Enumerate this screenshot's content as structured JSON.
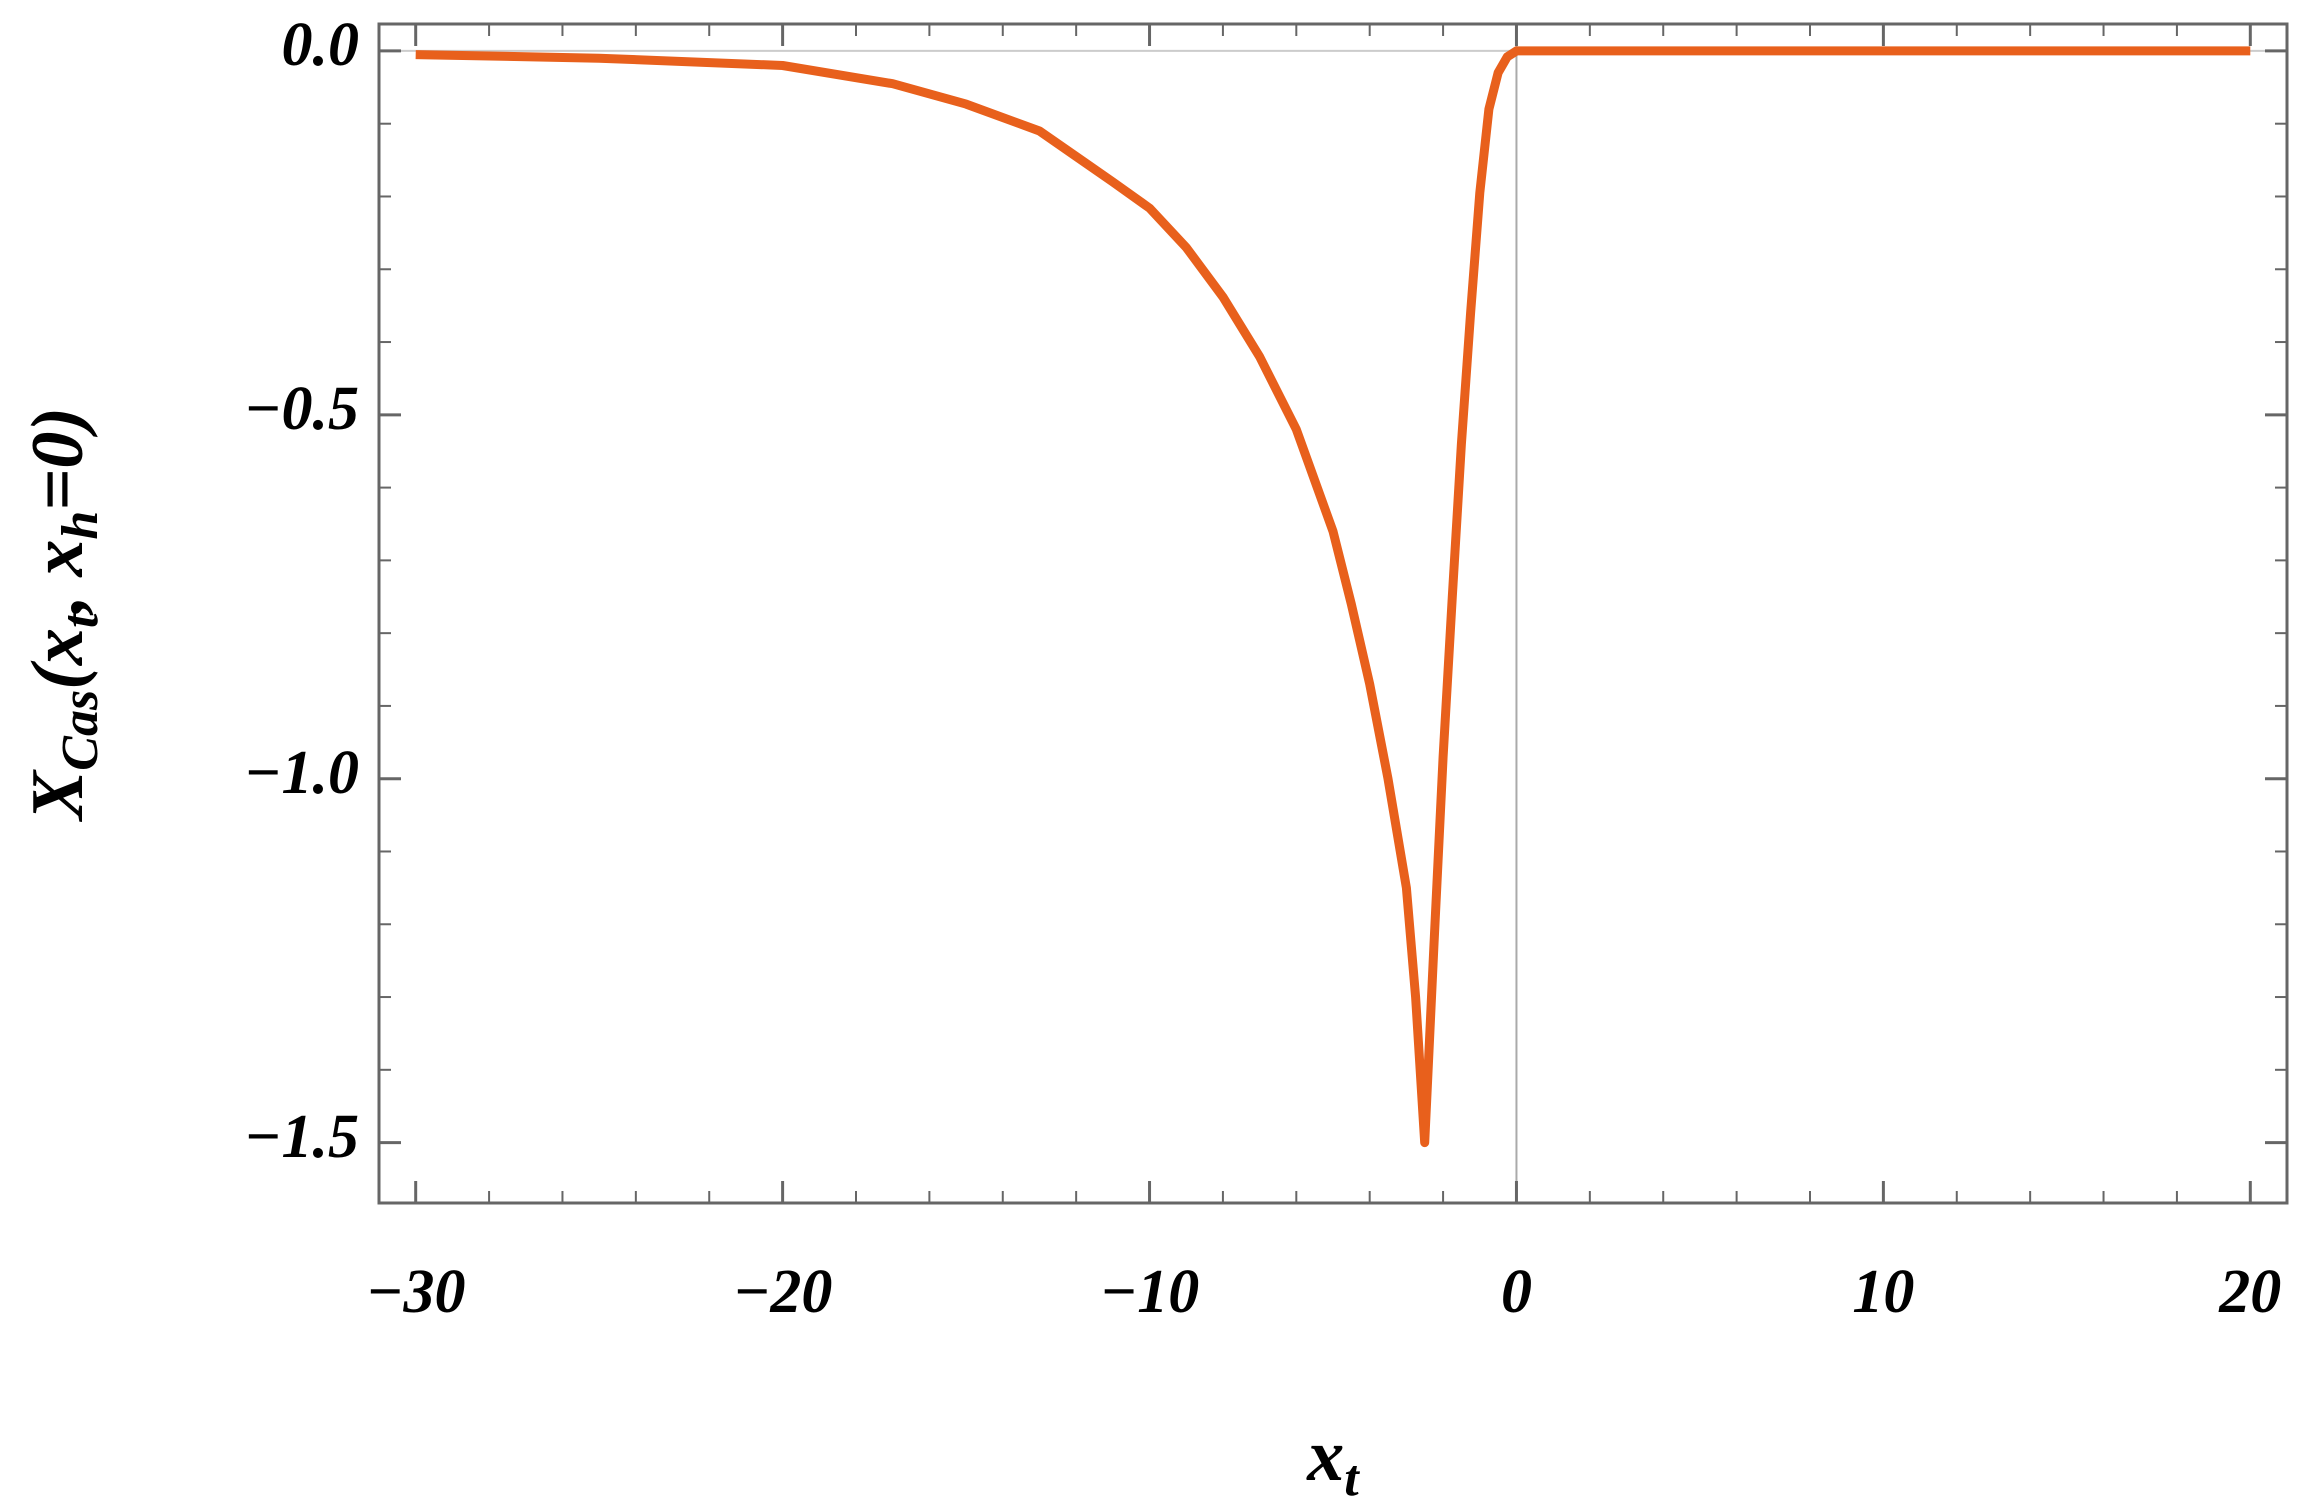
{
  "chart_data": {
    "type": "line",
    "xlabel": [
      {
        "text": "x"
      },
      {
        "text": "t",
        "sub": true
      }
    ],
    "ylabel": [
      {
        "text": "X"
      },
      {
        "text": "Cas",
        "sub": true
      },
      {
        "text": "(x"
      },
      {
        "text": "t",
        "sub": true
      },
      {
        "text": ", x"
      },
      {
        "text": "h",
        "sub": true
      },
      {
        "text": "=0)"
      }
    ],
    "x": [
      -30,
      -25,
      -20,
      -17,
      -15,
      -13,
      -12,
      -11,
      -10,
      -9,
      -8,
      -7,
      -6,
      -5,
      -4.5,
      -4,
      -3.5,
      -3,
      -2.75,
      -2.5,
      -2.25,
      -2,
      -1.75,
      -1.5,
      -1.25,
      -1,
      -0.75,
      -0.5,
      -0.25,
      0,
      5,
      10,
      15,
      20
    ],
    "values": [
      -0.005,
      -0.01,
      -0.02,
      -0.045,
      -0.073,
      -0.11,
      -0.145,
      -0.18,
      -0.216,
      -0.27,
      -0.338,
      -0.42,
      -0.52,
      -0.66,
      -0.76,
      -0.87,
      -1.0,
      -1.15,
      -1.3,
      -1.5,
      -1.23,
      -0.97,
      -0.75,
      -0.54,
      -0.36,
      -0.195,
      -0.08,
      -0.03,
      -0.008,
      0,
      0,
      0,
      0,
      0
    ],
    "color": "#e8601c",
    "xlim": [
      -31,
      21
    ],
    "ylim": [
      -1.583,
      0.037
    ],
    "xticks": [
      {
        "value": -30,
        "label": "−30"
      },
      {
        "value": -20,
        "label": "−20"
      },
      {
        "value": -10,
        "label": "−10"
      },
      0,
      10,
      20
    ],
    "yticks": [
      {
        "value": 0,
        "label": "0.0"
      },
      {
        "value": -0.5,
        "label": "−0.5"
      },
      {
        "value": -1,
        "label": "−1.0"
      },
      {
        "value": -1.5,
        "label": "−1.5"
      }
    ],
    "xminorticks": [
      -28,
      -26,
      -24,
      -22,
      -18,
      -16,
      -14,
      -12,
      -8,
      -6,
      -4,
      -2,
      2,
      4,
      6,
      8,
      12,
      14,
      16,
      18
    ],
    "yminorticks": [
      -0.1,
      -0.2,
      -0.3,
      -0.4,
      -0.6,
      -0.7,
      -0.8,
      -0.9,
      -1.1,
      -1.2,
      -1.3,
      -1.4
    ],
    "zero_lines": true
  }
}
